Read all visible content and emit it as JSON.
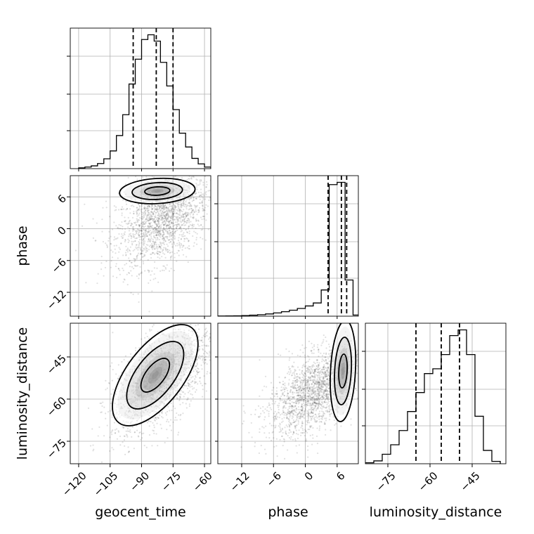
{
  "chart_data": {
    "type": "corner",
    "parameters": [
      "geocent_time",
      "phase",
      "luminosity_distance"
    ],
    "axis_labels": {
      "x": [
        "geocent_time",
        "phase",
        "luminosity_distance"
      ],
      "y": [
        "phase",
        "luminosity_distance"
      ]
    },
    "ranges": {
      "geocent_time": [
        -124,
        -57
      ],
      "phase": [
        -16.5,
        10
      ],
      "luminosity_distance": [
        -83,
        -33
      ]
    },
    "tick_labels": {
      "geocent_time": [
        "−120",
        "−105",
        "−90",
        "−75",
        "−60"
      ],
      "phase": [
        "−12",
        "−6",
        "0",
        "6"
      ],
      "luminosity_distance": [
        "−75",
        "−60",
        "−45"
      ]
    },
    "tick_values": {
      "geocent_time": [
        -120,
        -105,
        -90,
        -75,
        -60
      ],
      "phase": [
        -12,
        -6,
        0,
        6
      ],
      "luminosity_distance": [
        -75,
        -60,
        -45
      ]
    },
    "grid": true,
    "histograms": [
      {
        "parameter": "geocent_time",
        "bin_edges": [
          -120,
          -117,
          -114,
          -111,
          -108,
          -105,
          -102,
          -99,
          -96,
          -93,
          -90,
          -87,
          -84,
          -81,
          -78,
          -75,
          -72,
          -69,
          -66,
          -63,
          -60,
          -57
        ],
        "counts": [
          2,
          4,
          7,
          13,
          25,
          45,
          84,
          137,
          215,
          278,
          328,
          340,
          324,
          270,
          210,
          150,
          90,
          55,
          26,
          12,
          4
        ],
        "quantiles": [
          -94,
          -83,
          -75
        ]
      },
      {
        "parameter": "phase",
        "bin_edges": [
          -16.5,
          -15,
          -13.5,
          -12,
          -10.5,
          -9,
          -7.5,
          -6,
          -4.5,
          -3,
          -1.5,
          0,
          1.5,
          3,
          4.5,
          6,
          7.5,
          9,
          10.5
        ],
        "counts": [
          1,
          2,
          3,
          5,
          8,
          12,
          18,
          26,
          36,
          48,
          62,
          82,
          106,
          210,
          1054,
          1072,
          290,
          9
        ],
        "quantiles": [
          4.3,
          6.8,
          7.8
        ]
      },
      {
        "parameter": "luminosity_distance",
        "bin_edges": [
          -83,
          -80,
          -77,
          -74,
          -71,
          -68,
          -65,
          -62,
          -59,
          -56,
          -53,
          -50,
          -47,
          -44,
          -41,
          -38,
          -35
        ],
        "counts": [
          2,
          6,
          20,
          40,
          70,
          110,
          150,
          190,
          200,
          230,
          270,
          282,
          230,
          100,
          28,
          5
        ],
        "quantiles": [
          -65,
          -56,
          -49.5
        ]
      }
    ],
    "density_panels": [
      {
        "x": "geocent_time",
        "y": "phase",
        "scatter": {
          "mean": [
            -80,
            2
          ],
          "sd": [
            11,
            4.5
          ],
          "rho": 0.4,
          "n": 2000
        },
        "core": {
          "center": [
            -82.5,
            7.1
          ],
          "sd": [
            7.5,
            1.0
          ],
          "rho": 0.15
        },
        "contour_levels": [
          "0.5σ",
          "1σ",
          "1.5σ"
        ]
      },
      {
        "x": "geocent_time",
        "y": "luminosity_distance",
        "scatter": {
          "mean": [
            -80,
            -52
          ],
          "sd": [
            12,
            10
          ],
          "rho": 0.62,
          "n": 2000
        },
        "core": {
          "center": [
            -83.5,
            -51.5
          ],
          "sd": [
            8.5,
            7.5
          ],
          "rho": 0.62
        },
        "contour_levels": [
          "0.5σ",
          "1σ",
          "1.5σ"
        ]
      },
      {
        "x": "phase",
        "y": "luminosity_distance",
        "scatter": {
          "mean": [
            2,
            -57
          ],
          "sd": [
            4.5,
            8
          ],
          "rho": 0.55,
          "n": 2000
        },
        "core": {
          "center": [
            7.1,
            -50
          ],
          "sd": [
            1.0,
            7.5
          ],
          "rho": 0.2
        },
        "contour_levels": [
          "0.5σ",
          "1σ",
          "1.5σ"
        ]
      }
    ]
  }
}
